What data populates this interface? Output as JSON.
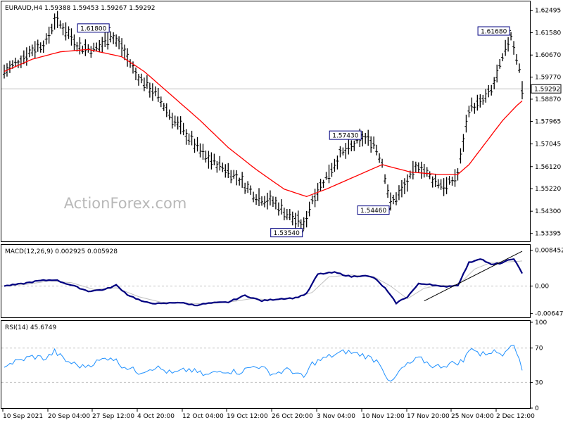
{
  "colors": {
    "background": "#ffffff",
    "frame": "#000000",
    "price_bars": "#000000",
    "moving_average": "#ff0000",
    "macd_main": "#000080",
    "macd_signal": "#c0c0c0",
    "rsi_line": "#1e90ff",
    "level_lines": "#c0c0c0",
    "current_price_box": "#ffffff"
  },
  "watermark": "ActionForex.com",
  "chart_data": [
    {
      "type": "line",
      "title": "EURAUD,H4  1.59388 1.59453 1.59267 1.59292",
      "price_axis_ticks": [
        "1.62495",
        "1.61580",
        "1.60670",
        "1.59770",
        "1.58870",
        "1.57965",
        "1.57045",
        "1.56120",
        "1.55220",
        "1.54300",
        "1.53395"
      ],
      "current_price_label": "1.59292",
      "current_price": 1.59292,
      "ylim": [
        1.531,
        1.628
      ],
      "x_ticks": [
        "10 Sep 2021",
        "20 Sep 04:00",
        "27 Sep 12:00",
        "4 Oct 20:00",
        "12 Oct 04:00",
        "19 Oct 12:00",
        "26 Oct 20:00",
        "3 Nov 04:00",
        "10 Nov 12:00",
        "17 Nov 20:00",
        "25 Nov 04:00",
        "2 Dec 12:00"
      ],
      "annotations": [
        {
          "label": "1.61800",
          "value": 1.618,
          "bar": 38
        },
        {
          "label": "1.53540",
          "value": 1.5354,
          "bar": 107
        },
        {
          "label": "1.57430",
          "value": 1.5743,
          "bar": 128
        },
        {
          "label": "1.54460",
          "value": 1.5446,
          "bar": 138
        },
        {
          "label": "1.61680",
          "value": 1.6168,
          "bar": 181
        }
      ],
      "bars": 186,
      "price_anchors": [
        [
          0,
          1.6
        ],
        [
          5,
          1.604
        ],
        [
          10,
          1.609
        ],
        [
          15,
          1.612
        ],
        [
          18,
          1.621
        ],
        [
          22,
          1.617
        ],
        [
          27,
          1.61
        ],
        [
          32,
          1.609
        ],
        [
          35,
          1.611
        ],
        [
          38,
          1.615
        ],
        [
          42,
          1.61
        ],
        [
          47,
          1.599
        ],
        [
          54,
          1.591
        ],
        [
          60,
          1.581
        ],
        [
          66,
          1.573
        ],
        [
          72,
          1.565
        ],
        [
          78,
          1.561
        ],
        [
          84,
          1.556
        ],
        [
          90,
          1.549
        ],
        [
          96,
          1.547
        ],
        [
          102,
          1.541
        ],
        [
          107,
          1.537
        ],
        [
          110,
          1.548
        ],
        [
          115,
          1.557
        ],
        [
          120,
          1.566
        ],
        [
          125,
          1.57
        ],
        [
          128,
          1.573
        ],
        [
          132,
          1.571
        ],
        [
          135,
          1.563
        ],
        [
          138,
          1.546
        ],
        [
          143,
          1.553
        ],
        [
          148,
          1.562
        ],
        [
          153,
          1.556
        ],
        [
          158,
          1.553
        ],
        [
          162,
          1.558
        ],
        [
          166,
          1.585
        ],
        [
          170,
          1.587
        ],
        [
          174,
          1.592
        ],
        [
          178,
          1.605
        ],
        [
          181,
          1.615
        ],
        [
          184,
          1.601
        ],
        [
          185,
          1.593
        ]
      ],
      "ma_anchors": [
        [
          0,
          1.6
        ],
        [
          10,
          1.605
        ],
        [
          20,
          1.608
        ],
        [
          30,
          1.609
        ],
        [
          42,
          1.606
        ],
        [
          50,
          1.6
        ],
        [
          60,
          1.59
        ],
        [
          70,
          1.58
        ],
        [
          80,
          1.569
        ],
        [
          90,
          1.56
        ],
        [
          100,
          1.552
        ],
        [
          108,
          1.549
        ],
        [
          115,
          1.552
        ],
        [
          125,
          1.557
        ],
        [
          135,
          1.562
        ],
        [
          145,
          1.559
        ],
        [
          155,
          1.558
        ],
        [
          162,
          1.558
        ],
        [
          166,
          1.562
        ],
        [
          172,
          1.571
        ],
        [
          178,
          1.58
        ],
        [
          183,
          1.586
        ],
        [
          185,
          1.588
        ]
      ],
      "legend": "none"
    },
    {
      "type": "line",
      "title": "MACD(12,26,9) 0.002925 0.005928",
      "axis_ticks": [
        "0.008452",
        "0.00",
        "-0.006475"
      ],
      "ylim": [
        -0.0072,
        0.0092
      ],
      "series": [
        {
          "name": "MACD",
          "anchors": [
            [
              0,
              0.0
            ],
            [
              6,
              0.0005
            ],
            [
              12,
              0.0012
            ],
            [
              18,
              0.0015
            ],
            [
              24,
              0.0002
            ],
            [
              30,
              -0.0012
            ],
            [
              36,
              -0.0008
            ],
            [
              40,
              0.0002
            ],
            [
              44,
              -0.002
            ],
            [
              50,
              -0.0038
            ],
            [
              56,
              -0.0042
            ],
            [
              62,
              -0.0038
            ],
            [
              68,
              -0.0045
            ],
            [
              74,
              -0.004
            ],
            [
              80,
              -0.0038
            ],
            [
              86,
              -0.0022
            ],
            [
              92,
              -0.0035
            ],
            [
              98,
              -0.003
            ],
            [
              104,
              -0.0028
            ],
            [
              108,
              -0.0018
            ],
            [
              112,
              0.0028
            ],
            [
              118,
              0.0032
            ],
            [
              124,
              0.0022
            ],
            [
              128,
              0.0025
            ],
            [
              132,
              0.002
            ],
            [
              136,
              -0.0005
            ],
            [
              140,
              -0.004
            ],
            [
              144,
              -0.0025
            ],
            [
              148,
              0.0005
            ],
            [
              152,
              0.0005
            ],
            [
              156,
              -0.0002
            ],
            [
              162,
              0.0002
            ],
            [
              166,
              0.0055
            ],
            [
              170,
              0.0065
            ],
            [
              174,
              0.005
            ],
            [
              178,
              0.0055
            ],
            [
              182,
              0.0065
            ],
            [
              185,
              0.0029
            ]
          ]
        },
        {
          "name": "Signal",
          "anchors": [
            [
              0,
              0.0
            ],
            [
              8,
              0.0004
            ],
            [
              16,
              0.0012
            ],
            [
              24,
              0.0008
            ],
            [
              32,
              -0.0008
            ],
            [
              40,
              -0.0004
            ],
            [
              48,
              -0.0025
            ],
            [
              56,
              -0.0038
            ],
            [
              64,
              -0.004
            ],
            [
              72,
              -0.0042
            ],
            [
              80,
              -0.0038
            ],
            [
              88,
              -0.003
            ],
            [
              96,
              -0.0032
            ],
            [
              104,
              -0.0028
            ],
            [
              110,
              -0.0015
            ],
            [
              116,
              0.0022
            ],
            [
              124,
              0.0026
            ],
            [
              132,
              0.0022
            ],
            [
              138,
              0.0
            ],
            [
              144,
              -0.003
            ],
            [
              150,
              -0.0005
            ],
            [
              156,
              0.0002
            ],
            [
              162,
              0.0001
            ],
            [
              168,
              0.004
            ],
            [
              174,
              0.0056
            ],
            [
              180,
              0.0057
            ],
            [
              185,
              0.0059
            ]
          ]
        }
      ],
      "trendline": {
        "from": [
          150,
          -0.0035
        ],
        "to": [
          185,
          0.0082
        ]
      }
    },
    {
      "type": "line",
      "title": "RSI(14) 45.6749",
      "axis_ticks": [
        "100",
        "70",
        "30",
        "0"
      ],
      "ylim": [
        0,
        100
      ],
      "levels": [
        70,
        30
      ],
      "series": [
        {
          "name": "RSI",
          "anchors": [
            [
              0,
              50
            ],
            [
              5,
              55
            ],
            [
              10,
              60
            ],
            [
              15,
              58
            ],
            [
              18,
              66
            ],
            [
              22,
              55
            ],
            [
              28,
              48
            ],
            [
              34,
              55
            ],
            [
              38,
              60
            ],
            [
              42,
              50
            ],
            [
              48,
              42
            ],
            [
              54,
              48
            ],
            [
              60,
              40
            ],
            [
              66,
              45
            ],
            [
              72,
              38
            ],
            [
              78,
              44
            ],
            [
              84,
              42
            ],
            [
              90,
              50
            ],
            [
              96,
              40
            ],
            [
              102,
              45
            ],
            [
              107,
              35
            ],
            [
              110,
              52
            ],
            [
              116,
              60
            ],
            [
              122,
              66
            ],
            [
              128,
              62
            ],
            [
              134,
              54
            ],
            [
              138,
              28
            ],
            [
              142,
              46
            ],
            [
              148,
              58
            ],
            [
              154,
              48
            ],
            [
              160,
              52
            ],
            [
              164,
              55
            ],
            [
              167,
              72
            ],
            [
              170,
              62
            ],
            [
              174,
              66
            ],
            [
              178,
              64
            ],
            [
              181,
              76
            ],
            [
              184,
              58
            ],
            [
              185,
              46
            ]
          ]
        }
      ]
    }
  ]
}
